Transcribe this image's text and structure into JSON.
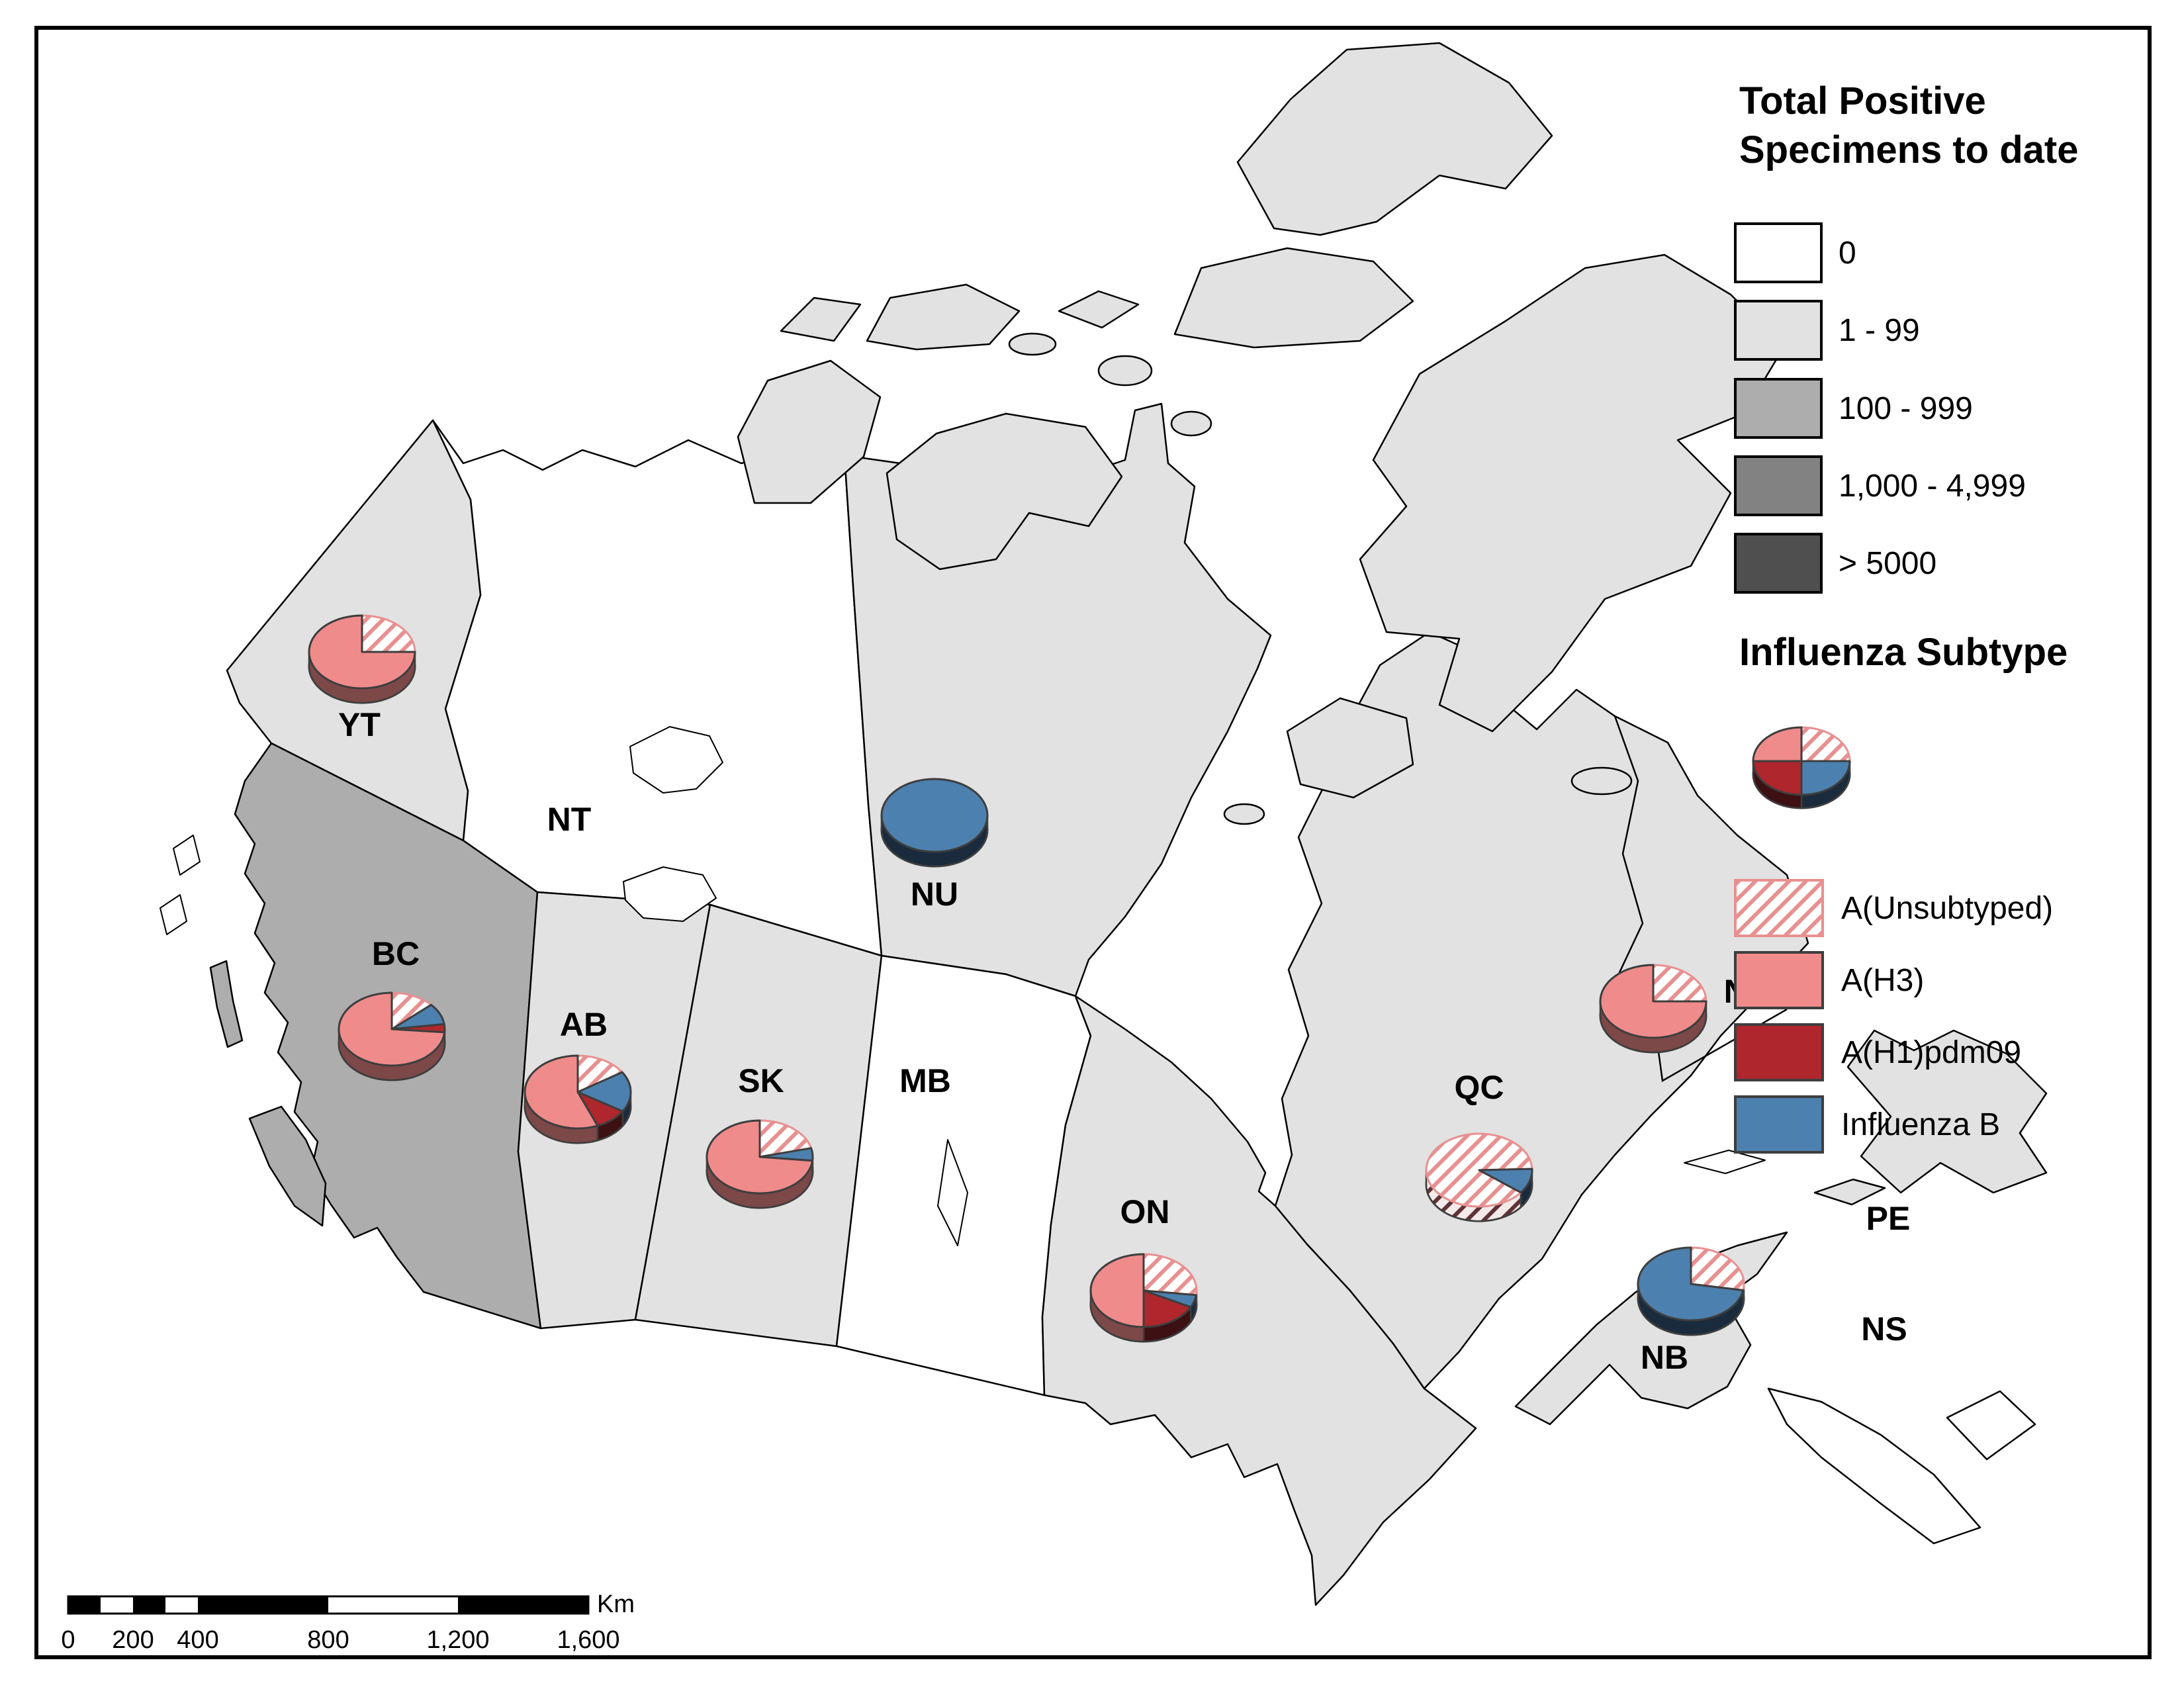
{
  "map": {
    "region_labels": [
      {
        "id": "YT",
        "label": "YT",
        "category": "1 - 99"
      },
      {
        "id": "NT",
        "label": "NT",
        "category": "0"
      },
      {
        "id": "NU",
        "label": "NU",
        "category": "1 - 99"
      },
      {
        "id": "BC",
        "label": "BC",
        "category": "100 - 999"
      },
      {
        "id": "AB",
        "label": "AB",
        "category": "1 - 99"
      },
      {
        "id": "SK",
        "label": "SK",
        "category": "1 - 99"
      },
      {
        "id": "MB",
        "label": "MB",
        "category": "0"
      },
      {
        "id": "ON",
        "label": "ON",
        "category": "1 - 99"
      },
      {
        "id": "QC",
        "label": "QC",
        "category": "1 - 99"
      },
      {
        "id": "NL",
        "label": "NL",
        "category": "1 - 99"
      },
      {
        "id": "NB",
        "label": "NB",
        "category": "1 - 99"
      },
      {
        "id": "PE",
        "label": "PE",
        "category": "1 - 99"
      },
      {
        "id": "NS",
        "label": "NS",
        "category": "0"
      }
    ]
  },
  "legend_specimens": {
    "title_line1": "Total Positive",
    "title_line2": "Specimens to date",
    "classes": [
      {
        "label": "0",
        "color": "#FFFFFF"
      },
      {
        "label": "1 - 99",
        "color": "#E2E2E2"
      },
      {
        "label": "100 - 999",
        "color": "#ADADAD"
      },
      {
        "label": "1,000 - 4,999",
        "color": "#828282"
      },
      {
        "label": "> 5000",
        "color": "#4F4F4F"
      }
    ]
  },
  "legend_subtype": {
    "title": "Influenza Subtype",
    "items": [
      {
        "label": "A(Unsubtyped)",
        "swatch": "hatch"
      },
      {
        "label": "A(H3)",
        "swatch": "#F08B8B"
      },
      {
        "label": "A(H1)pdm09",
        "swatch": "#AF262C"
      },
      {
        "label": "Influenza B",
        "swatch": "#4C80AE"
      }
    ],
    "sample_pie": {
      "slices": [
        {
          "subtype": "A(Unsubtyped)",
          "start_deg": 0,
          "end_deg": 90
        },
        {
          "subtype": "Influenza B",
          "start_deg": 90,
          "end_deg": 180
        },
        {
          "subtype": "A(H1)pdm09",
          "start_deg": 180,
          "end_deg": 270
        },
        {
          "subtype": "A(H3)",
          "start_deg": 270,
          "end_deg": 360
        }
      ]
    }
  },
  "scale_bar": {
    "ticks": [
      "0",
      "200",
      "400",
      "800",
      "1,200",
      "1,600"
    ],
    "unit": "Km"
  },
  "colors": {
    "h3": "#F08B8B",
    "h1pdm09": "#AF262C",
    "influenza_b": "#4C80AE",
    "hatch_line": "#E89090",
    "outline": "#3E3E3E",
    "h3_side": "#7D4848",
    "h1_side": "#3D1014",
    "b_side": "#1A2B3D",
    "pie_base": "#2E2E2E"
  },
  "chart_data": {
    "type": "pie",
    "description": "Influenza subtype distribution (% of positive specimens) per province/territory, shown as 3D pies on map",
    "pies": [
      {
        "region": "YT",
        "slices": [
          {
            "subtype": "A(Unsubtyped)",
            "pct": 25,
            "start_deg": 0,
            "end_deg": 90
          },
          {
            "subtype": "A(H3)",
            "pct": 75,
            "start_deg": 90,
            "end_deg": 360
          }
        ]
      },
      {
        "region": "NU",
        "slices": [
          {
            "subtype": "Influenza B",
            "pct": 100,
            "start_deg": 0,
            "end_deg": 360
          }
        ]
      },
      {
        "region": "BC",
        "slices": [
          {
            "subtype": "A(Unsubtyped)",
            "pct": 13,
            "start_deg": 0,
            "end_deg": 48
          },
          {
            "subtype": "Influenza B",
            "pct": 10,
            "start_deg": 48,
            "end_deg": 82
          },
          {
            "subtype": "A(H1)pdm09",
            "pct": 4,
            "start_deg": 82,
            "end_deg": 95
          },
          {
            "subtype": "A(H3)",
            "pct": 73,
            "start_deg": 95,
            "end_deg": 360
          }
        ]
      },
      {
        "region": "AB",
        "slices": [
          {
            "subtype": "A(Unsubtyped)",
            "pct": 16,
            "start_deg": 0,
            "end_deg": 57
          },
          {
            "subtype": "Influenza B",
            "pct": 18,
            "start_deg": 57,
            "end_deg": 122
          },
          {
            "subtype": "A(H1)pdm09",
            "pct": 10,
            "start_deg": 122,
            "end_deg": 158
          },
          {
            "subtype": "A(H3)",
            "pct": 56,
            "start_deg": 158,
            "end_deg": 360
          }
        ]
      },
      {
        "region": "SK",
        "slices": [
          {
            "subtype": "A(Unsubtyped)",
            "pct": 21,
            "start_deg": 0,
            "end_deg": 76
          },
          {
            "subtype": "Influenza B",
            "pct": 6,
            "start_deg": 76,
            "end_deg": 96
          },
          {
            "subtype": "A(H3)",
            "pct": 73,
            "start_deg": 96,
            "end_deg": 360
          }
        ]
      },
      {
        "region": "ON",
        "slices": [
          {
            "subtype": "A(Unsubtyped)",
            "pct": 27,
            "start_deg": 0,
            "end_deg": 97
          },
          {
            "subtype": "Influenza B",
            "pct": 6,
            "start_deg": 97,
            "end_deg": 117
          },
          {
            "subtype": "A(H1)pdm09",
            "pct": 17,
            "start_deg": 117,
            "end_deg": 180
          },
          {
            "subtype": "A(H3)",
            "pct": 50,
            "start_deg": 180,
            "end_deg": 360
          }
        ]
      },
      {
        "region": "QC",
        "slices": [
          {
            "subtype": "A(Unsubtyped)",
            "pct": 89,
            "start_deg": 128,
            "end_deg": 448
          },
          {
            "subtype": "Influenza B",
            "pct": 11,
            "start_deg": 88,
            "end_deg": 128
          }
        ]
      },
      {
        "region": "NL",
        "slices": [
          {
            "subtype": "A(Unsubtyped)",
            "pct": 25,
            "start_deg": 0,
            "end_deg": 90
          },
          {
            "subtype": "A(H3)",
            "pct": 75,
            "start_deg": 90,
            "end_deg": 360
          }
        ]
      },
      {
        "region": "NB",
        "slices": [
          {
            "subtype": "A(Unsubtyped)",
            "pct": 28,
            "start_deg": 0,
            "end_deg": 100
          },
          {
            "subtype": "Influenza B",
            "pct": 72,
            "start_deg": 100,
            "end_deg": 360
          }
        ]
      }
    ]
  }
}
